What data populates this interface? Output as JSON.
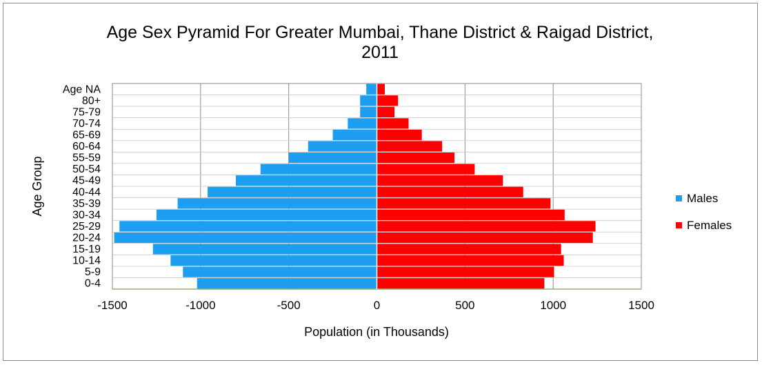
{
  "chart_data": {
    "type": "bar",
    "orientation": "horizontal",
    "stacked": "diverging",
    "title": "Age Sex Pyramid For Greater Mumbai, Thane District & Raigad District, 2011",
    "title_lines": [
      "Age Sex Pyramid For Greater Mumbai, Thane District & Raigad District,",
      "2011"
    ],
    "xlabel": "Population (in Thousands)",
    "ylabel": "Age Group",
    "xlim": [
      -1500,
      1500
    ],
    "xticks": [
      -1500,
      -1000,
      -500,
      0,
      500,
      1000,
      1500
    ],
    "grid": true,
    "legend_position": "right",
    "categories": [
      "0-4",
      "5-9",
      "10-14",
      "15-19",
      "20-24",
      "25-29",
      "30-34",
      "35-39",
      "40-44",
      "45-49",
      "50-54",
      "55-59",
      "60-64",
      "65-69",
      "70-74",
      "75-79",
      "80+",
      "Age NA"
    ],
    "series": [
      {
        "name": "Males",
        "color": "#1E9EF0",
        "values": [
          -1020,
          -1100,
          -1170,
          -1270,
          -1490,
          -1460,
          -1250,
          -1130,
          -960,
          -800,
          -660,
          -500,
          -390,
          -250,
          -165,
          -95,
          -95,
          -60
        ]
      },
      {
        "name": "Females",
        "color": "#FF0000",
        "values": [
          950,
          1005,
          1060,
          1045,
          1225,
          1240,
          1065,
          985,
          830,
          715,
          555,
          440,
          370,
          255,
          180,
          100,
          120,
          45
        ]
      }
    ]
  }
}
